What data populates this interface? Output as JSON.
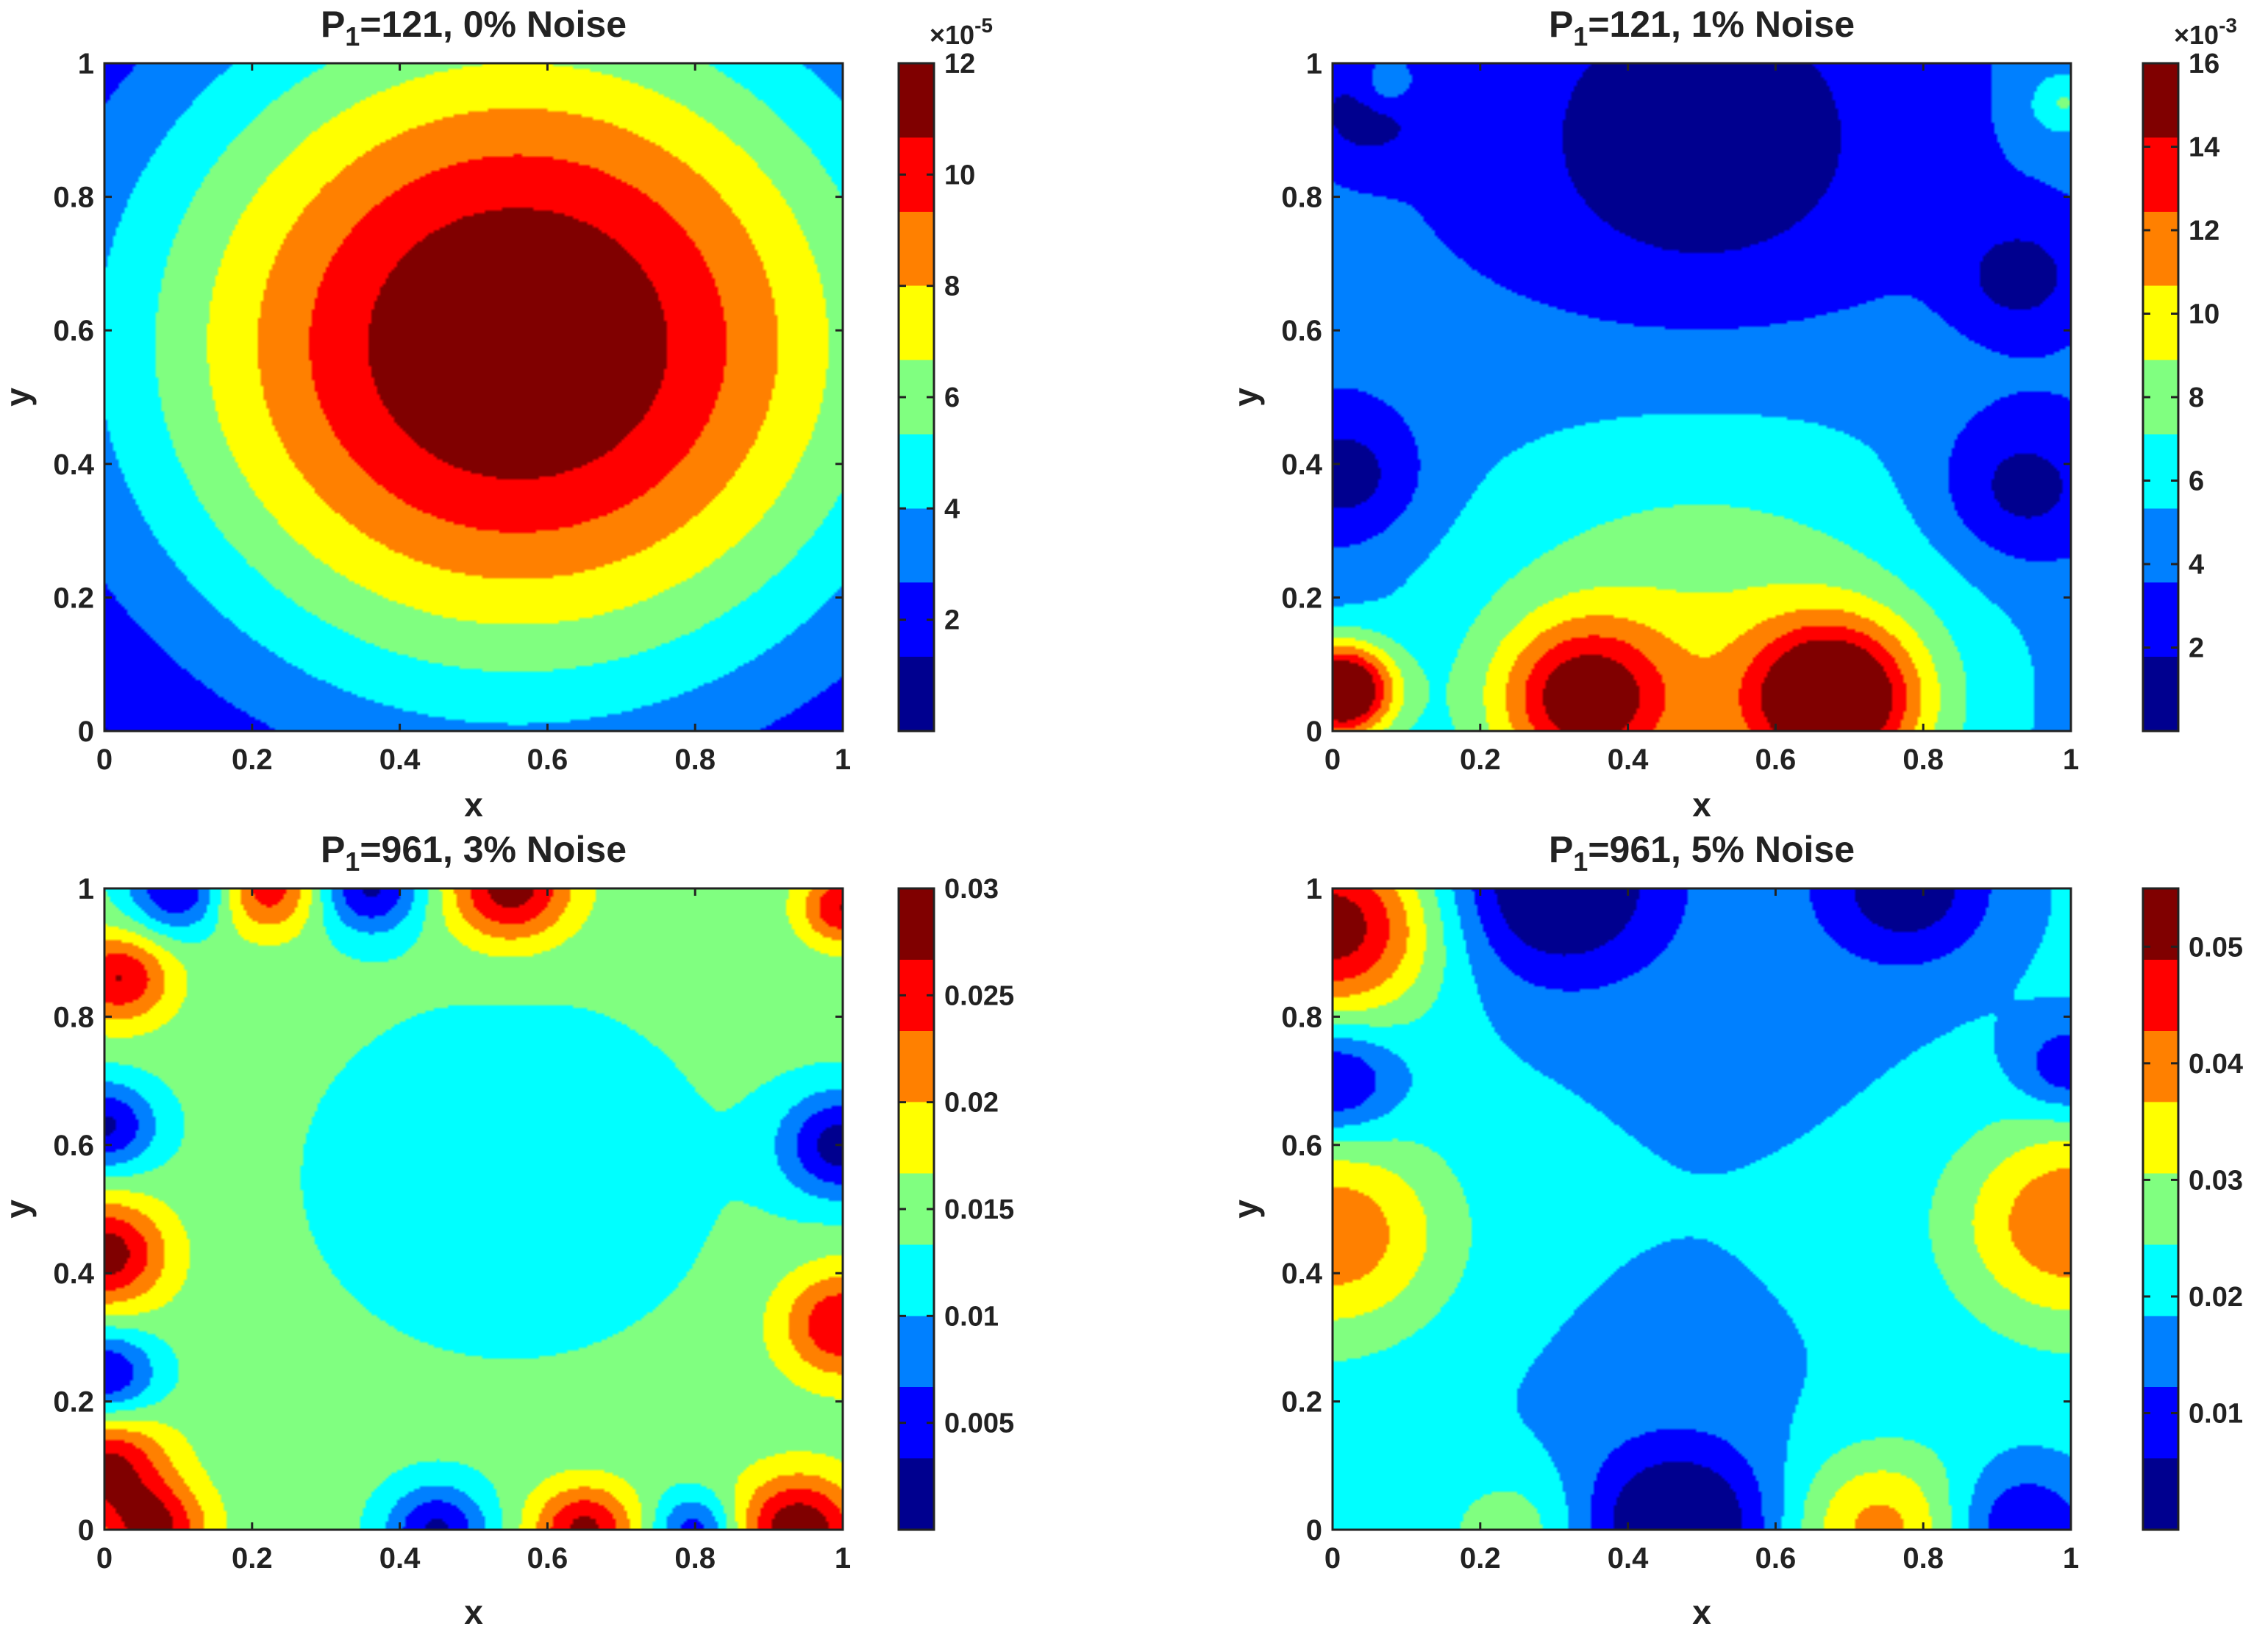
{
  "figure": {
    "colormap": [
      "#00008f",
      "#0000ff",
      "#0080ff",
      "#00ffff",
      "#80ff80",
      "#ffff00",
      "#ff8000",
      "#ff0000",
      "#800000"
    ]
  },
  "chart_data": [
    {
      "type": "heatmap",
      "title_base": "P",
      "title_sub": "1",
      "title_rest": "=121, 0% Noise",
      "xlabel": "x",
      "ylabel": "y",
      "xlim": [
        0,
        1
      ],
      "ylim": [
        0,
        1
      ],
      "xticks": [
        "0",
        "0.2",
        "0.4",
        "0.6",
        "0.8",
        "1"
      ],
      "yticks": [
        "0",
        "0.2",
        "0.4",
        "0.6",
        "0.8",
        "1"
      ],
      "colorbar": {
        "range": [
          0,
          12
        ],
        "ticks": [
          2,
          4,
          6,
          8,
          10,
          12
        ],
        "tick_labels": [
          "2",
          "4",
          "6",
          "8",
          "10",
          "12"
        ],
        "exponent_label": "×10",
        "exponent": "-5"
      },
      "field": {
        "bg": 0,
        "blobs": [
          {
            "x": 0.56,
            "y": 0.58,
            "s": 0.38,
            "a": 12.3
          }
        ]
      }
    },
    {
      "type": "heatmap",
      "title_base": "P",
      "title_sub": "1",
      "title_rest": "=121, 1% Noise",
      "xlabel": "x",
      "ylabel": "y",
      "xlim": [
        0,
        1
      ],
      "ylim": [
        0,
        1
      ],
      "xticks": [
        "0",
        "0.2",
        "0.4",
        "0.6",
        "0.8",
        "1"
      ],
      "yticks": [
        "0",
        "0.2",
        "0.4",
        "0.6",
        "0.8",
        "1"
      ],
      "colorbar": {
        "range": [
          0,
          16
        ],
        "ticks": [
          2,
          4,
          6,
          8,
          10,
          12,
          14,
          16
        ],
        "tick_labels": [
          "2",
          "4",
          "6",
          "8",
          "10",
          "12",
          "14",
          "16"
        ],
        "exponent_label": "×10",
        "exponent": "-3"
      },
      "field": {
        "bg": 3.8,
        "blobs": [
          {
            "x": 0.5,
            "y": 0.06,
            "s": 0.28,
            "a": 5.5
          },
          {
            "x": 0.68,
            "y": 0.05,
            "s": 0.08,
            "a": 11
          },
          {
            "x": 0.34,
            "y": 0.05,
            "s": 0.08,
            "a": 8
          },
          {
            "x": 0.01,
            "y": 0.06,
            "s": 0.05,
            "a": 14
          },
          {
            "x": 0.5,
            "y": 0.88,
            "s": 0.18,
            "a": -3.6
          },
          {
            "x": 0.02,
            "y": 0.38,
            "s": 0.07,
            "a": -3.5
          },
          {
            "x": 0.93,
            "y": 0.36,
            "s": 0.08,
            "a": -3.5
          },
          {
            "x": 0.05,
            "y": 0.93,
            "s": 0.05,
            "a": -3.5
          },
          {
            "x": 0.07,
            "y": 0.96,
            "s": 0.03,
            "a": 3
          },
          {
            "x": 0.99,
            "y": 0.94,
            "s": 0.035,
            "a": 3.5
          },
          {
            "x": 0.93,
            "y": 0.68,
            "s": 0.06,
            "a": -3
          }
        ]
      }
    },
    {
      "type": "heatmap",
      "title_base": "P",
      "title_sub": "1",
      "title_rest": "=961, 3% Noise",
      "xlabel": "x",
      "ylabel": "y",
      "xlim": [
        0,
        1
      ],
      "ylim": [
        0,
        1
      ],
      "xticks": [
        "0",
        "0.2",
        "0.4",
        "0.6",
        "0.8",
        "1"
      ],
      "yticks": [
        "0",
        "0.2",
        "0.4",
        "0.6",
        "0.8",
        "1"
      ],
      "colorbar": {
        "range": [
          0,
          0.03
        ],
        "ticks": [
          0.005,
          0.01,
          0.015,
          0.02,
          0.025,
          0.03
        ],
        "tick_labels": [
          "0.005",
          "0.01",
          "0.015",
          "0.02",
          "0.025",
          "0.03"
        ]
      },
      "field": {
        "bg": 0.0148,
        "blobs": [
          {
            "x": 0.55,
            "y": 0.55,
            "s": 0.2,
            "a": -0.004
          },
          {
            "x": 0.0,
            "y": 0.43,
            "s": 0.06,
            "a": 0.014
          },
          {
            "x": 0.0,
            "y": 0.63,
            "s": 0.05,
            "a": -0.012
          },
          {
            "x": 0.0,
            "y": 0.24,
            "s": 0.05,
            "a": -0.012
          },
          {
            "x": 0.0,
            "y": 0.1,
            "s": 0.06,
            "a": 0.013
          },
          {
            "x": 0.02,
            "y": 0.86,
            "s": 0.05,
            "a": 0.012
          },
          {
            "x": 0.1,
            "y": 1.0,
            "s": 0.05,
            "a": -0.012
          },
          {
            "x": 0.22,
            "y": 1.0,
            "s": 0.05,
            "a": 0.011
          },
          {
            "x": 0.36,
            "y": 1.0,
            "s": 0.05,
            "a": -0.012
          },
          {
            "x": 0.55,
            "y": 1.0,
            "s": 0.06,
            "a": 0.014
          },
          {
            "x": 1.0,
            "y": 0.97,
            "s": 0.04,
            "a": 0.012
          },
          {
            "x": 1.0,
            "y": 0.6,
            "s": 0.06,
            "a": -0.013
          },
          {
            "x": 1.0,
            "y": 0.32,
            "s": 0.06,
            "a": 0.012
          },
          {
            "x": 0.94,
            "y": 0.0,
            "s": 0.06,
            "a": 0.015
          },
          {
            "x": 0.8,
            "y": 0.0,
            "s": 0.04,
            "a": -0.01
          },
          {
            "x": 0.65,
            "y": 0.0,
            "s": 0.05,
            "a": 0.013
          },
          {
            "x": 0.45,
            "y": 0.0,
            "s": 0.05,
            "a": -0.012
          },
          {
            "x": 0.07,
            "y": 0.0,
            "s": 0.05,
            "a": 0.012
          }
        ]
      }
    },
    {
      "type": "heatmap",
      "title_base": "P",
      "title_sub": "1",
      "title_rest": "=961, 5% Noise",
      "xlabel": "x",
      "ylabel": "y",
      "xlim": [
        0,
        1
      ],
      "ylim": [
        0,
        1
      ],
      "xticks": [
        "0",
        "0.2",
        "0.4",
        "0.6",
        "0.8",
        "1"
      ],
      "yticks": [
        "0",
        "0.2",
        "0.4",
        "0.6",
        "0.8",
        "1"
      ],
      "colorbar": {
        "range": [
          0,
          0.055
        ],
        "ticks": [
          0.01,
          0.02,
          0.03,
          0.04,
          0.05
        ],
        "tick_labels": [
          "0.01",
          "0.02",
          "0.03",
          "0.04",
          "0.05"
        ]
      },
      "field": {
        "bg": 0.021,
        "blobs": [
          {
            "x": 0.0,
            "y": 0.94,
            "s": 0.1,
            "a": 0.033
          },
          {
            "x": 0.0,
            "y": 0.46,
            "s": 0.11,
            "a": 0.021
          },
          {
            "x": 1.0,
            "y": 0.48,
            "s": 0.11,
            "a": 0.022
          },
          {
            "x": 0.74,
            "y": 0.0,
            "s": 0.09,
            "a": 0.02
          },
          {
            "x": 0.25,
            "y": 0.0,
            "s": 0.07,
            "a": 0.01
          },
          {
            "x": 0.0,
            "y": 0.7,
            "s": 0.06,
            "a": -0.018
          },
          {
            "x": 0.3,
            "y": 1.0,
            "s": 0.1,
            "a": -0.02
          },
          {
            "x": 0.78,
            "y": 1.0,
            "s": 0.08,
            "a": -0.016
          },
          {
            "x": 0.47,
            "y": 0.0,
            "s": 0.09,
            "a": -0.022
          },
          {
            "x": 0.93,
            "y": 0.0,
            "s": 0.07,
            "a": -0.016
          },
          {
            "x": 1.0,
            "y": 0.72,
            "s": 0.05,
            "a": -0.014
          },
          {
            "x": 0.55,
            "y": 0.98,
            "s": 0.3,
            "a": -0.005
          },
          {
            "x": 0.45,
            "y": 0.12,
            "s": 0.25,
            "a": -0.004
          }
        ]
      }
    }
  ]
}
